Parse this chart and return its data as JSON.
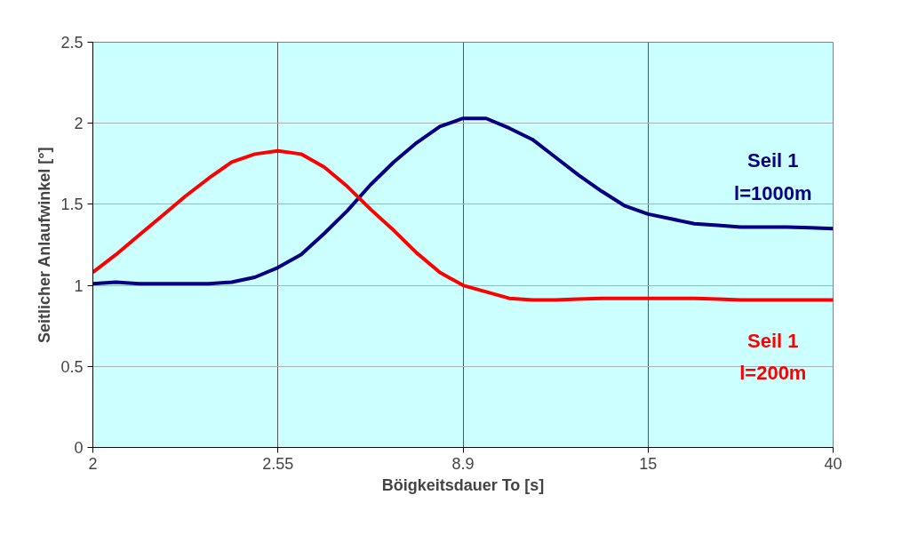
{
  "chart_data": {
    "type": "line",
    "xlabel": "Böigkeitsdauer To [s]",
    "ylabel": "Seitlicher Anlaufwinkel [°]",
    "categories": [
      "2",
      null,
      null,
      null,
      null,
      null,
      null,
      null,
      "2.55",
      null,
      null,
      null,
      null,
      null,
      null,
      null,
      "8.9",
      null,
      null,
      null,
      null,
      null,
      null,
      null,
      "15",
      null,
      null,
      null,
      null,
      null,
      null,
      null,
      "40"
    ],
    "ylim": [
      0,
      2.5
    ],
    "yticks": [
      0,
      0.5,
      1,
      1.5,
      2,
      2.5
    ],
    "grid": true,
    "marker": "none",
    "line_style": "solid",
    "series": [
      {
        "name": "Seil 1\nl=1000m",
        "color": "#000080",
        "values": [
          1.01,
          1.02,
          1.01,
          1.01,
          1.01,
          1.01,
          1.02,
          1.05,
          1.11,
          1.19,
          1.32,
          1.46,
          1.62,
          1.76,
          1.88,
          1.98,
          2.03,
          2.03,
          1.97,
          1.9,
          1.79,
          1.68,
          1.58,
          1.49,
          1.44,
          1.41,
          1.38,
          1.37,
          1.36,
          1.36,
          1.36,
          1.355,
          1.35
        ]
      },
      {
        "name": "Seil 1\nl=200m",
        "color": "#ff0000",
        "values": [
          1.08,
          1.19,
          1.31,
          1.43,
          1.55,
          1.66,
          1.76,
          1.81,
          1.83,
          1.81,
          1.73,
          1.61,
          1.47,
          1.34,
          1.2,
          1.08,
          1.0,
          0.96,
          0.92,
          0.91,
          0.91,
          0.915,
          0.92,
          0.92,
          0.92,
          0.92,
          0.92,
          0.915,
          0.91,
          0.91,
          0.91,
          0.91,
          0.91
        ]
      }
    ]
  }
}
